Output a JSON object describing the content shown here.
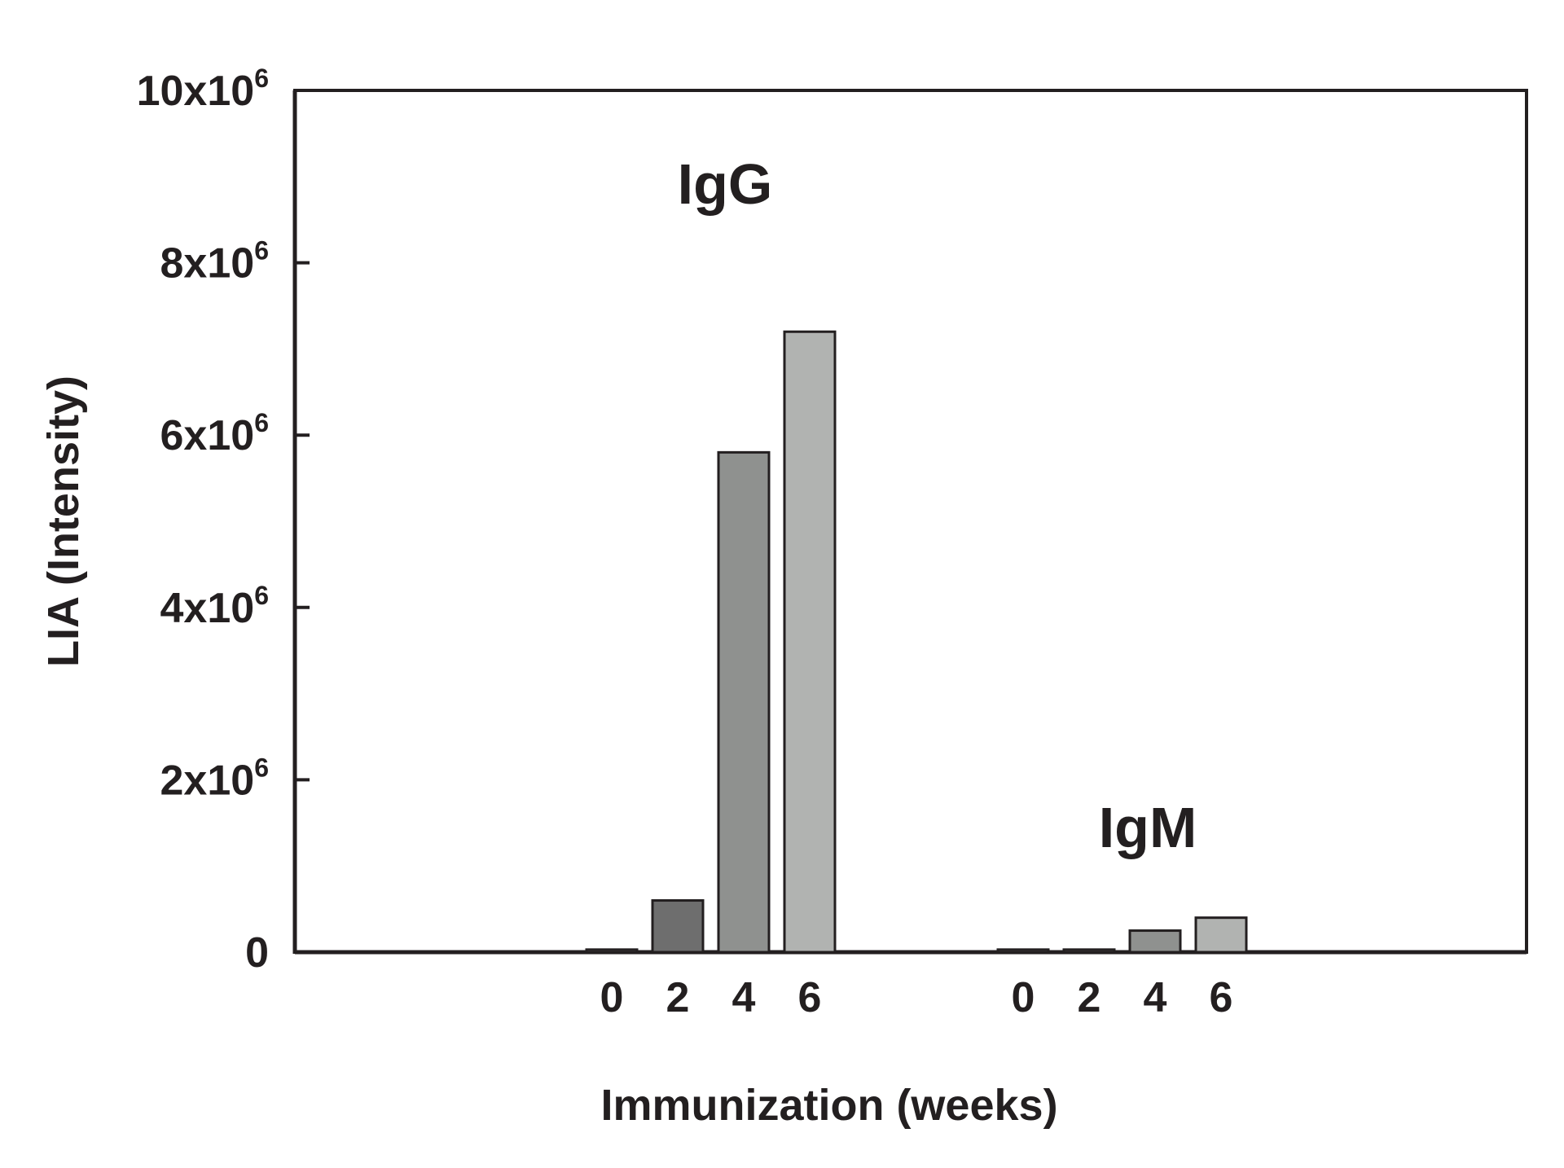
{
  "chart_data": {
    "type": "bar",
    "xlabel": "Immunization (weeks)",
    "ylabel": "LIA (Intensity)",
    "ylim": [
      0,
      10000000
    ],
    "y_ticks": [
      {
        "value": 0,
        "base": "0",
        "exp": ""
      },
      {
        "value": 2000000,
        "base": "2x10",
        "exp": "6"
      },
      {
        "value": 4000000,
        "base": "4x10",
        "exp": "6"
      },
      {
        "value": 6000000,
        "base": "6x10",
        "exp": "6"
      },
      {
        "value": 8000000,
        "base": "8x10",
        "exp": "6"
      },
      {
        "value": 10000000,
        "base": "10x10",
        "exp": "6"
      }
    ],
    "categories": [
      "0",
      "2",
      "4",
      "6"
    ],
    "groups": [
      {
        "name": "IgG",
        "values": [
          30000,
          600000,
          5800000,
          7200000
        ]
      },
      {
        "name": "IgM",
        "values": [
          30000,
          30000,
          250000,
          400000
        ]
      }
    ],
    "bar_colors": [
      "#6e6e6e",
      "#6e6e6e",
      "#8f918f",
      "#b1b3b1"
    ],
    "grid": false,
    "legend": "none"
  }
}
